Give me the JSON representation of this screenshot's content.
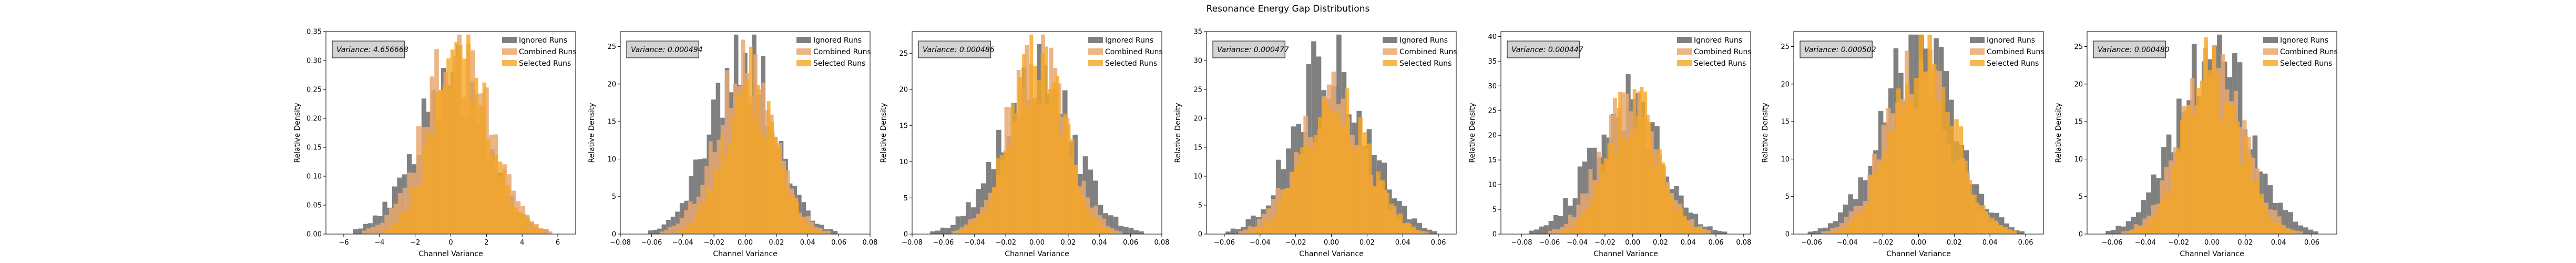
{
  "figure": {
    "suptitle": "Resonance Energy Gap Distributions"
  },
  "chart_data": [
    {
      "type": "bar",
      "subtype": "histogram-overlay",
      "xlabel": "Channel Variance",
      "ylabel": "Relative Density",
      "xlim": [
        -7,
        7
      ],
      "ylim": [
        0,
        0.35
      ],
      "xticks": [
        -6,
        -4,
        -2,
        0,
        2,
        4,
        6
      ],
      "xtick_labels": [
        "−6",
        "−4",
        "−2",
        "0",
        "2",
        "4",
        "6"
      ],
      "yticks": [
        0,
        0.05,
        0.1,
        0.15,
        0.2,
        0.25,
        0.3,
        0.35
      ],
      "ytick_labels": [
        "0.00",
        "0.05",
        "0.10",
        "0.15",
        "0.20",
        "0.25",
        "0.30",
        "0.35"
      ],
      "annotation": "Variance: 4.656668",
      "legend": {
        "position": "upper right"
      },
      "series": [
        {
          "name": "Ignored Runs",
          "color": "#808080",
          "bins": [
            -6.3,
            6.3
          ],
          "peak": 0.28
        },
        {
          "name": "Combined Runs",
          "color": "#e8a870",
          "bins": [
            -5.5,
            6.2
          ],
          "peak": 0.32
        },
        {
          "name": "Selected Runs",
          "color": "#f5a623",
          "bins": [
            -4.5,
            5.8
          ],
          "peak": 0.31
        }
      ]
    },
    {
      "type": "bar",
      "subtype": "histogram-overlay",
      "xlabel": "Channel Variance",
      "ylabel": "Relative Density",
      "xlim": [
        -0.08,
        0.08
      ],
      "ylim": [
        0,
        27
      ],
      "xticks": [
        -0.08,
        -0.06,
        -0.04,
        -0.02,
        0.0,
        0.02,
        0.04,
        0.06,
        0.08
      ],
      "xtick_labels": [
        "−0.08",
        "−0.06",
        "−0.04",
        "−0.02",
        "0.00",
        "0.02",
        "0.04",
        "0.06",
        "0.08"
      ],
      "yticks": [
        0,
        5,
        10,
        15,
        20,
        25
      ],
      "ytick_labels": [
        "0",
        "5",
        "10",
        "15",
        "20",
        "25"
      ],
      "annotation": "Variance: 0.000494",
      "legend": {
        "position": "upper right"
      },
      "series": [
        {
          "name": "Ignored Runs",
          "color": "#808080",
          "bins": [
            -0.068,
            0.065
          ],
          "peak": 24
        },
        {
          "name": "Combined Runs",
          "color": "#e8a870",
          "bins": [
            -0.06,
            0.06
          ],
          "peak": 22
        },
        {
          "name": "Selected Runs",
          "color": "#f5a623",
          "bins": [
            -0.05,
            0.055
          ],
          "peak": 21
        }
      ]
    },
    {
      "type": "bar",
      "subtype": "histogram-overlay",
      "xlabel": "Channel Variance",
      "ylabel": "Relative Density",
      "xlim": [
        -0.08,
        0.08
      ],
      "ylim": [
        0,
        28
      ],
      "xticks": [
        -0.08,
        -0.06,
        -0.04,
        -0.02,
        0.0,
        0.02,
        0.04,
        0.06,
        0.08
      ],
      "xtick_labels": [
        "−0.08",
        "−0.06",
        "−0.04",
        "−0.02",
        "0.00",
        "0.02",
        "0.04",
        "0.06",
        "0.08"
      ],
      "yticks": [
        0,
        5,
        10,
        15,
        20,
        25
      ],
      "ytick_labels": [
        "0",
        "5",
        "10",
        "15",
        "20",
        "25"
      ],
      "annotation": "Variance: 0.000486",
      "legend": {
        "position": "upper right"
      },
      "series": [
        {
          "name": "Ignored Runs",
          "color": "#808080",
          "bins": [
            -0.075,
            0.075
          ],
          "peak": 22
        },
        {
          "name": "Combined Runs",
          "color": "#e8a870",
          "bins": [
            -0.06,
            0.06
          ],
          "peak": 25
        },
        {
          "name": "Selected Runs",
          "color": "#f5a623",
          "bins": [
            -0.055,
            0.055
          ],
          "peak": 26
        }
      ]
    },
    {
      "type": "bar",
      "subtype": "histogram-overlay",
      "xlabel": "Channel Variance",
      "ylabel": "Relative Density",
      "xlim": [
        -0.07,
        0.07
      ],
      "ylim": [
        0,
        35
      ],
      "xticks": [
        -0.06,
        -0.04,
        -0.02,
        0.0,
        0.02,
        0.04,
        0.06
      ],
      "xtick_labels": [
        "−0.06",
        "−0.04",
        "−0.02",
        "0.00",
        "0.02",
        "0.04",
        "0.06"
      ],
      "yticks": [
        0,
        5,
        10,
        15,
        20,
        25,
        30,
        35
      ],
      "ytick_labels": [
        "0",
        "5",
        "10",
        "15",
        "20",
        "25",
        "30",
        "35"
      ],
      "annotation": "Variance: 0.000477",
      "legend": {
        "position": "upper right"
      },
      "series": [
        {
          "name": "Ignored Runs",
          "color": "#808080",
          "bins": [
            -0.065,
            0.065
          ],
          "peak": 31
        },
        {
          "name": "Combined Runs",
          "color": "#e8a870",
          "bins": [
            -0.06,
            0.06
          ],
          "peak": 24
        },
        {
          "name": "Selected Runs",
          "color": "#f5a623",
          "bins": [
            -0.055,
            0.06
          ],
          "peak": 23
        }
      ]
    },
    {
      "type": "bar",
      "subtype": "histogram-overlay",
      "xlabel": "Channel Variance",
      "ylabel": "Relative Density",
      "xlim": [
        -0.095,
        0.085
      ],
      "ylim": [
        0,
        41
      ],
      "xticks": [
        -0.08,
        -0.06,
        -0.04,
        -0.02,
        0.0,
        0.02,
        0.04,
        0.06,
        0.08
      ],
      "xtick_labels": [
        "−0.08",
        "−0.06",
        "−0.04",
        "−0.02",
        "0.00",
        "0.02",
        "0.04",
        "0.06",
        "0.08"
      ],
      "yticks": [
        0,
        5,
        10,
        15,
        20,
        25,
        30,
        35,
        40
      ],
      "ytick_labels": [
        "0",
        "5",
        "10",
        "15",
        "20",
        "25",
        "30",
        "35",
        "40"
      ],
      "annotation": "Variance: 0.000447",
      "legend": {
        "position": "upper right"
      },
      "series": [
        {
          "name": "Ignored Runs",
          "color": "#808080",
          "bins": [
            -0.085,
            0.075
          ],
          "peak": 27
        },
        {
          "name": "Combined Runs",
          "color": "#e8a870",
          "bins": [
            -0.07,
            0.065
          ],
          "peak": 26
        },
        {
          "name": "Selected Runs",
          "color": "#f5a623",
          "bins": [
            -0.06,
            0.06
          ],
          "peak": 27
        }
      ]
    },
    {
      "type": "bar",
      "subtype": "histogram-overlay",
      "xlabel": "Channel Variance",
      "ylabel": "Relative Density",
      "xlim": [
        -0.07,
        0.07
      ],
      "ylim": [
        0,
        27
      ],
      "xticks": [
        -0.06,
        -0.04,
        -0.02,
        0.0,
        0.02,
        0.04,
        0.06
      ],
      "xtick_labels": [
        "−0.06",
        "−0.04",
        "−0.02",
        "0.00",
        "0.02",
        "0.04",
        "0.06"
      ],
      "yticks": [
        0,
        5,
        10,
        15,
        20,
        25
      ],
      "ytick_labels": [
        "0",
        "5",
        "10",
        "15",
        "20",
        "25"
      ],
      "annotation": "Variance: 0.000502",
      "legend": {
        "position": "upper right"
      },
      "series": [
        {
          "name": "Ignored Runs",
          "color": "#808080",
          "bins": [
            -0.065,
            0.065
          ],
          "peak": 26
        },
        {
          "name": "Combined Runs",
          "color": "#e8a870",
          "bins": [
            -0.06,
            0.06
          ],
          "peak": 22
        },
        {
          "name": "Selected Runs",
          "color": "#f5a623",
          "bins": [
            -0.055,
            0.06
          ],
          "peak": 24
        }
      ]
    },
    {
      "type": "bar",
      "subtype": "histogram-overlay",
      "xlabel": "Channel Variance",
      "ylabel": "Relative Density",
      "xlim": [
        -0.075,
        0.075
      ],
      "ylim": [
        0,
        27
      ],
      "xticks": [
        -0.06,
        -0.04,
        -0.02,
        0.0,
        0.02,
        0.04,
        0.06
      ],
      "xtick_labels": [
        "−0.06",
        "−0.04",
        "−0.02",
        "0.00",
        "0.02",
        "0.04",
        "0.06"
      ],
      "yticks": [
        0,
        5,
        10,
        15,
        20,
        25
      ],
      "ytick_labels": [
        "0",
        "5",
        "10",
        "15",
        "20",
        "25"
      ],
      "annotation": "Variance: 0.000480",
      "legend": {
        "position": "upper right"
      },
      "series": [
        {
          "name": "Ignored Runs",
          "color": "#808080",
          "bins": [
            -0.07,
            0.07
          ],
          "peak": 26
        },
        {
          "name": "Combined Runs",
          "color": "#e8a870",
          "bins": [
            -0.06,
            0.06
          ],
          "peak": 22
        },
        {
          "name": "Selected Runs",
          "color": "#f5a623",
          "bins": [
            -0.055,
            0.055
          ],
          "peak": 22
        }
      ]
    }
  ]
}
